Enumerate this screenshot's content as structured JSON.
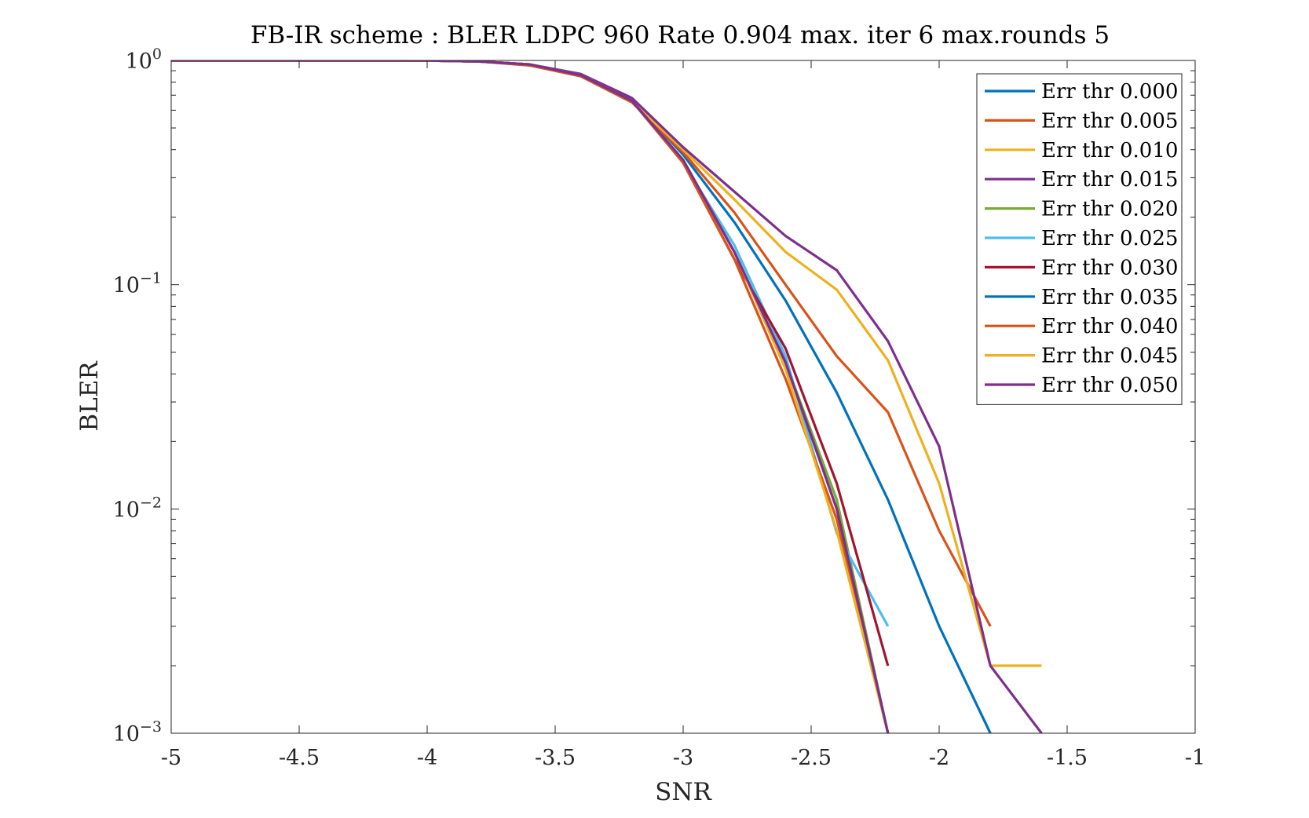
{
  "chart_data": {
    "type": "line",
    "title": "FB-IR scheme : BLER LDPC 960 Rate 0.904 max. iter 6 max.rounds 5",
    "xlabel": "SNR",
    "ylabel": "BLER",
    "xlim": [
      -5,
      -1
    ],
    "ylim": [
      0.001,
      1
    ],
    "yscale": "log",
    "grid": false,
    "legend_position": "top-right",
    "x_ticks": [
      -5,
      -4.5,
      -4,
      -3.5,
      -3,
      -2.5,
      -2,
      -1.5,
      -1
    ],
    "x_tick_labels": [
      "-5",
      "-4.5",
      "-4",
      "-3.5",
      "-3",
      "-2.5",
      "-2",
      "-1.5",
      "-1"
    ],
    "y_ticks": [
      {
        "value": 1,
        "base": "10",
        "exp": "0"
      },
      {
        "value": 0.1,
        "base": "10",
        "exp": "−1"
      },
      {
        "value": 0.01,
        "base": "10",
        "exp": "−2"
      },
      {
        "value": 0.001,
        "base": "10",
        "exp": "−3"
      }
    ],
    "series": [
      {
        "name": "Err thr 0.000",
        "color": "#0072BD",
        "x": [
          -5,
          -4.8,
          -4.6,
          -4.4,
          -4.2,
          -4.0,
          -3.8,
          -3.6,
          -3.4,
          -3.2,
          -3.0,
          -2.8,
          -2.6,
          -2.4,
          -2.2,
          -2.0,
          -1.8
        ],
        "y": [
          1,
          1,
          1,
          1,
          1,
          0.999,
          0.99,
          0.96,
          0.87,
          0.67,
          0.38,
          0.19,
          0.085,
          0.033,
          0.011,
          0.003,
          0.001
        ]
      },
      {
        "name": "Err thr 0.005",
        "color": "#D95319",
        "x": [
          -5,
          -4.8,
          -4.6,
          -4.4,
          -4.2,
          -4.0,
          -3.8,
          -3.6,
          -3.4,
          -3.2,
          -3.0,
          -2.8,
          -2.6,
          -2.4,
          -2.2,
          -2.0,
          -1.8
        ],
        "y": [
          1,
          1,
          1,
          1,
          1,
          0.999,
          0.99,
          0.95,
          0.85,
          0.65,
          0.39,
          0.21,
          0.1,
          0.048,
          0.027,
          0.008,
          0.003
        ]
      },
      {
        "name": "Err thr 0.010",
        "color": "#EDB120",
        "x": [
          -5,
          -4.8,
          -4.6,
          -4.4,
          -4.2,
          -4.0,
          -3.8,
          -3.6,
          -3.4,
          -3.2,
          -3.0,
          -2.8,
          -2.6,
          -2.4,
          -2.2,
          -2.0,
          -1.8,
          -1.6
        ],
        "y": [
          1,
          1,
          1,
          1,
          1,
          0.999,
          0.99,
          0.96,
          0.86,
          0.66,
          0.4,
          0.24,
          0.14,
          0.095,
          0.046,
          0.013,
          0.002,
          0.002
        ]
      },
      {
        "name": "Err thr 0.015",
        "color": "#7E2F8E",
        "x": [
          -5,
          -4.8,
          -4.6,
          -4.4,
          -4.2,
          -4.0,
          -3.8,
          -3.6,
          -3.4,
          -3.2,
          -3.0,
          -2.8,
          -2.6,
          -2.4,
          -2.2,
          -2.0,
          -1.8,
          -1.6
        ],
        "y": [
          1,
          1,
          1,
          1,
          1,
          0.999,
          0.99,
          0.96,
          0.87,
          0.68,
          0.41,
          0.26,
          0.165,
          0.116,
          0.056,
          0.019,
          0.002,
          0.001
        ]
      },
      {
        "name": "Err thr 0.020",
        "color": "#77AC30",
        "x": [
          -5,
          -4.8,
          -4.6,
          -4.4,
          -4.2,
          -4.0,
          -3.8,
          -3.6,
          -3.4,
          -3.2,
          -3.0,
          -2.8,
          -2.6,
          -2.4,
          -2.2
        ],
        "y": [
          1,
          1,
          1,
          1,
          1,
          0.999,
          0.99,
          0.96,
          0.86,
          0.66,
          0.36,
          0.14,
          0.045,
          0.011,
          0.001
        ]
      },
      {
        "name": "Err thr 0.025",
        "color": "#4DBEEE",
        "x": [
          -5,
          -4.8,
          -4.6,
          -4.4,
          -4.2,
          -4.0,
          -3.8,
          -3.6,
          -3.4,
          -3.2,
          -3.0,
          -2.8,
          -2.6,
          -2.4,
          -2.2
        ],
        "y": [
          1,
          1,
          1,
          1,
          1,
          0.999,
          0.99,
          0.96,
          0.86,
          0.66,
          0.35,
          0.15,
          0.048,
          0.0078,
          0.003
        ]
      },
      {
        "name": "Err thr 0.030",
        "color": "#A2142F",
        "x": [
          -5,
          -4.8,
          -4.6,
          -4.4,
          -4.2,
          -4.0,
          -3.8,
          -3.6,
          -3.4,
          -3.2,
          -3.0,
          -2.8,
          -2.6,
          -2.4,
          -2.2
        ],
        "y": [
          1,
          1,
          1,
          1,
          1,
          0.999,
          0.99,
          0.96,
          0.86,
          0.66,
          0.35,
          0.13,
          0.052,
          0.013,
          0.002
        ]
      },
      {
        "name": "Err thr 0.035",
        "color": "#0072BD",
        "x": [
          -5,
          -4.8,
          -4.6,
          -4.4,
          -4.2,
          -4.0,
          -3.8,
          -3.6,
          -3.4,
          -3.2,
          -3.0,
          -2.8,
          -2.6,
          -2.4,
          -2.2
        ],
        "y": [
          1,
          1,
          1,
          1,
          1,
          0.999,
          0.99,
          0.96,
          0.86,
          0.66,
          0.36,
          0.14,
          0.045,
          0.01,
          0.001
        ]
      },
      {
        "name": "Err thr 0.040",
        "color": "#D95319",
        "x": [
          -5,
          -4.8,
          -4.6,
          -4.4,
          -4.2,
          -4.0,
          -3.8,
          -3.6,
          -3.4,
          -3.2,
          -3.0,
          -2.8,
          -2.6,
          -2.4,
          -2.2
        ],
        "y": [
          1,
          1,
          1,
          1,
          1,
          0.999,
          0.99,
          0.96,
          0.86,
          0.66,
          0.35,
          0.13,
          0.038,
          0.009,
          0.001
        ]
      },
      {
        "name": "Err thr 0.045",
        "color": "#EDB120",
        "x": [
          -5,
          -4.8,
          -4.6,
          -4.4,
          -4.2,
          -4.0,
          -3.8,
          -3.6,
          -3.4,
          -3.2,
          -3.0,
          -2.8,
          -2.6,
          -2.4,
          -2.2
        ],
        "y": [
          1,
          1,
          1,
          1,
          1,
          0.999,
          0.99,
          0.96,
          0.86,
          0.66,
          0.36,
          0.14,
          0.042,
          0.008,
          0.001
        ]
      },
      {
        "name": "Err thr 0.050",
        "color": "#7E2F8E",
        "x": [
          -5,
          -4.8,
          -4.6,
          -4.4,
          -4.2,
          -4.0,
          -3.8,
          -3.6,
          -3.4,
          -3.2,
          -3.0,
          -2.8,
          -2.6,
          -2.4,
          -2.2
        ],
        "y": [
          1,
          1,
          1,
          1,
          1,
          0.999,
          0.99,
          0.96,
          0.86,
          0.66,
          0.36,
          0.14,
          0.045,
          0.01,
          0.001
        ]
      }
    ]
  }
}
